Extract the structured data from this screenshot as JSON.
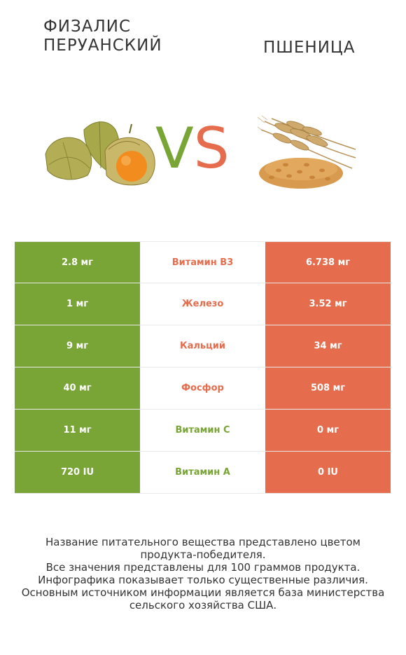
{
  "header": {
    "left_title": "ФИЗАЛИС\nПЕРУАНСКИЙ",
    "right_title": "ПШЕНИЦА",
    "vs_v": "V",
    "vs_s": "S"
  },
  "colors": {
    "left_accent": "#78a536",
    "right_accent": "#e56d4d"
  },
  "table": {
    "rows": [
      {
        "left": "2.8 мг",
        "nutrient": "Витамин B3",
        "right": "6.738 мг",
        "winner": "right"
      },
      {
        "left": "1 мг",
        "nutrient": "Железо",
        "right": "3.52 мг",
        "winner": "right"
      },
      {
        "left": "9 мг",
        "nutrient": "Кальций",
        "right": "34 мг",
        "winner": "right"
      },
      {
        "left": "40 мг",
        "nutrient": "Фосфор",
        "right": "508 мг",
        "winner": "right"
      },
      {
        "left": "11 мг",
        "nutrient": "Витамин C",
        "right": "0 мг",
        "winner": "left"
      },
      {
        "left": "720 IU",
        "nutrient": "Витамин A",
        "right": "0 IU",
        "winner": "left"
      }
    ]
  },
  "footer": {
    "line1": "Название питательного вещества представлено цветом",
    "line2": "продукта-победителя.",
    "line3": "Все значения представлены для 100 граммов продукта.",
    "line4": "Инфографика показывает только существенные различия.",
    "line5": "Основным источником информации является база министерства",
    "line6": "сельского хозяйства США."
  }
}
